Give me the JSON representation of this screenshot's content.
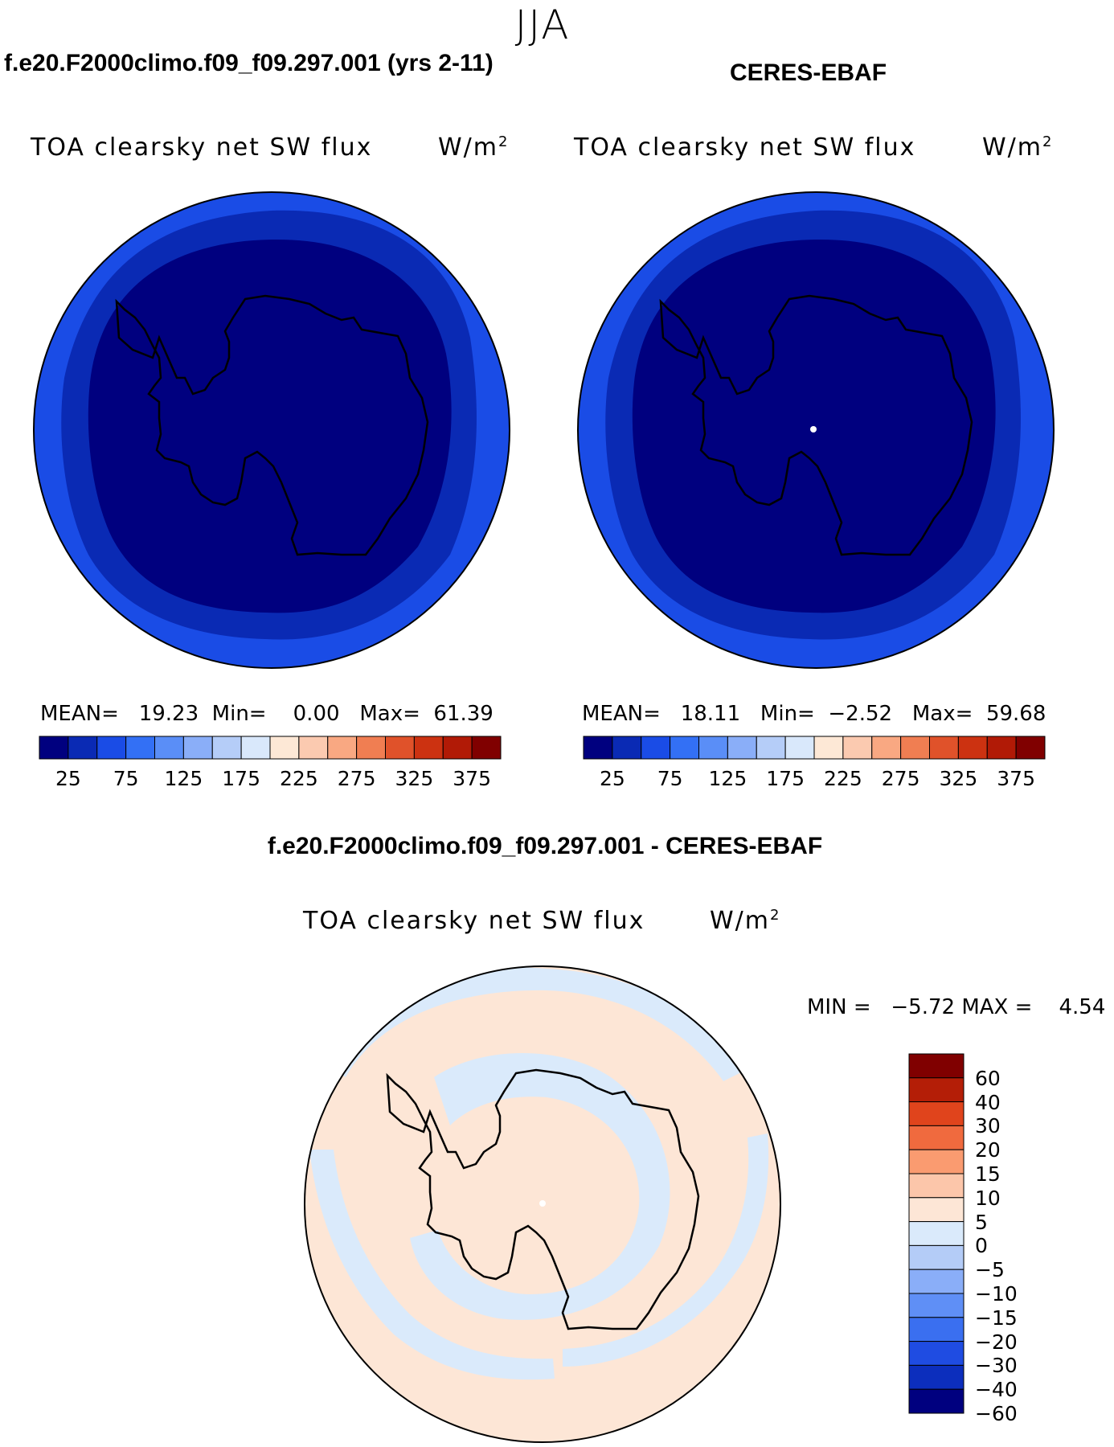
{
  "season": "JJA",
  "panels": [
    {
      "title": "f.e20.F2000climo.f09_f09.297.001 (yrs 2-11)",
      "field": "TOA clearsky net SW flux",
      "units": "W/m",
      "units_sup": "2",
      "stats": {
        "mean_label": "MEAN=",
        "mean": "19.23",
        "min_label": "Min=",
        "min": "0.00",
        "max_label": "Max=",
        "max": "61.39"
      }
    },
    {
      "title": "CERES-EBAF",
      "field": "TOA clearsky net SW flux",
      "units": "W/m",
      "units_sup": "2",
      "stats": {
        "mean_label": "MEAN=",
        "mean": "18.11",
        "min_label": "Min=",
        "min": "−2.52",
        "max_label": "Max=",
        "max": "59.68"
      }
    }
  ],
  "diff": {
    "title": "f.e20.F2000climo.f09_f09.297.001 - CERES-EBAF",
    "field": "TOA clearsky net SW flux",
    "units": "W/m",
    "units_sup": "2",
    "minmax": "MIN =   −5.72 MAX =    4.54"
  },
  "colorbar": {
    "colors": [
      "#00007f",
      "#0a2ab4",
      "#1a4ce6",
      "#3370f5",
      "#5a8ef7",
      "#8aaef8",
      "#b5cdf8",
      "#d9e8fb",
      "#fde8d6",
      "#fbcab0",
      "#f9a882",
      "#f07e52",
      "#e0522a",
      "#cc3211",
      "#b11a06",
      "#800000"
    ],
    "ticks": [
      "25",
      "75",
      "125",
      "175",
      "225",
      "275",
      "325",
      "375"
    ]
  },
  "diff_colorbar": {
    "colors": [
      "#800000",
      "#b41e07",
      "#e0441c",
      "#f06a3e",
      "#fa9b70",
      "#fcc6aa",
      "#fde6d6",
      "#daeafb",
      "#b4ccf7",
      "#8aaef8",
      "#5f8ff6",
      "#3a6ff0",
      "#1f4ce2",
      "#0c2ebd",
      "#00007f"
    ],
    "labels": [
      "60",
      "40",
      "30",
      "20",
      "15",
      "10",
      "5",
      "0",
      "−5",
      "−10",
      "−15",
      "−20",
      "−30",
      "−40",
      "−60"
    ]
  }
}
